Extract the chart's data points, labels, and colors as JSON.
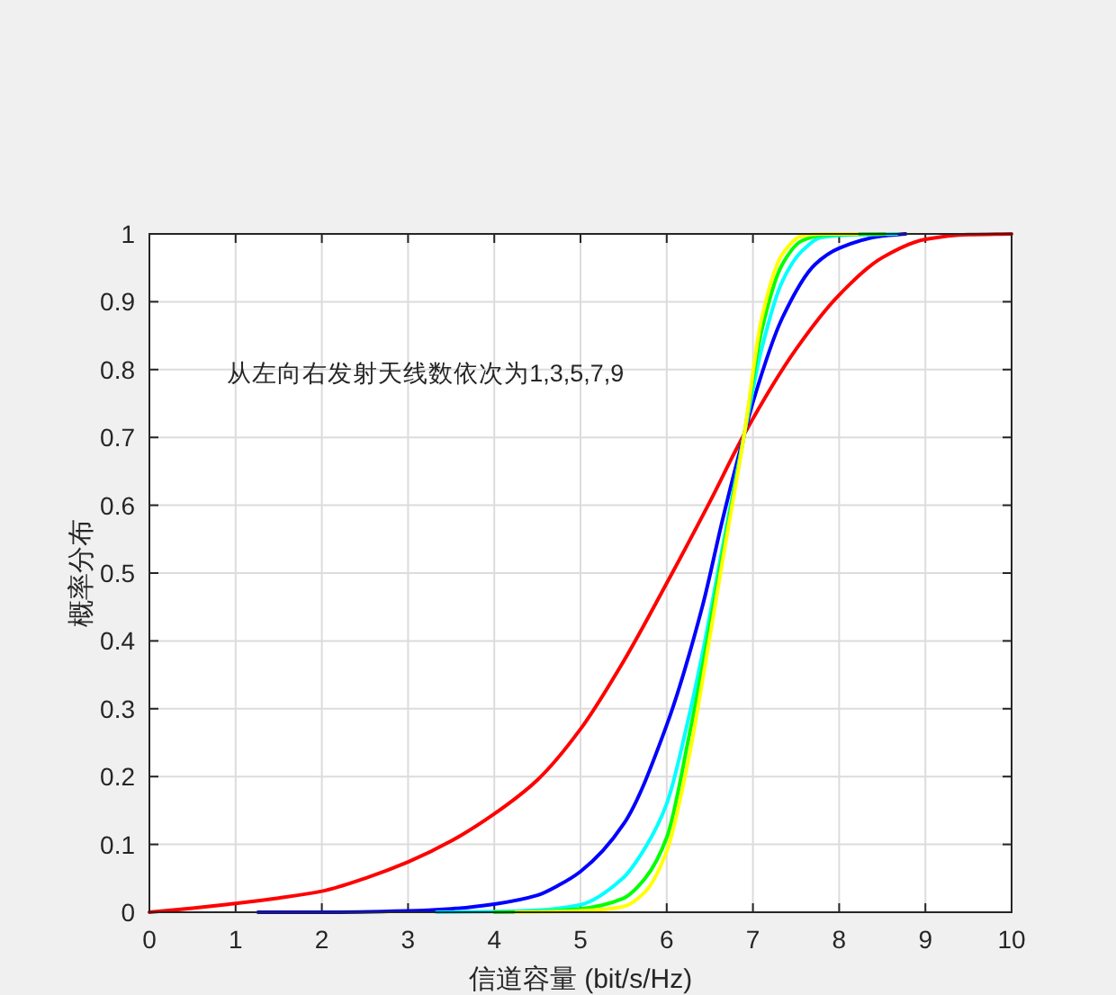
{
  "chart_data": {
    "type": "line",
    "xlabel": "信道容量 (bit/s/Hz)",
    "ylabel": "概率分布",
    "annotations": [
      "从左向右发射天线数依次为1,3,5,7,9"
    ],
    "xlim": [
      0,
      10
    ],
    "ylim": [
      0,
      1
    ],
    "xticks": [
      0,
      1,
      2,
      3,
      4,
      5,
      6,
      7,
      8,
      9,
      10
    ],
    "yticks": [
      0,
      0.1,
      0.2,
      0.3,
      0.4,
      0.5,
      0.6,
      0.7,
      0.8,
      0.9,
      1
    ],
    "grid": true,
    "series": [
      {
        "color": "#ff0000",
        "x": [
          0,
          0.5,
          1,
          1.5,
          2,
          2.5,
          3,
          3.5,
          4,
          4.5,
          5,
          5.5,
          6,
          6.5,
          6.9,
          7.5,
          8,
          8.5,
          9,
          9.5,
          10
        ],
        "values": [
          0,
          0.006,
          0.013,
          0.021,
          0.031,
          0.05,
          0.074,
          0.105,
          0.145,
          0.195,
          0.27,
          0.37,
          0.485,
          0.605,
          0.705,
          0.83,
          0.91,
          0.965,
          0.992,
          0.999,
          1
        ]
      },
      {
        "color": "#0000ff",
        "x": [
          1.26,
          2,
          3,
          3.5,
          4,
          4.5,
          4.75,
          5,
          5.5,
          6,
          6.42,
          6.65,
          6.9,
          7,
          7.34,
          7.72,
          8,
          8.5,
          8.77
        ],
        "values": [
          0,
          0,
          0.002,
          0.005,
          0.012,
          0.025,
          0.04,
          0.06,
          0.13,
          0.276,
          0.454,
          0.58,
          0.705,
          0.752,
          0.876,
          0.955,
          0.979,
          0.997,
          1
        ]
      },
      {
        "color": "#00ffff",
        "x": [
          3.33,
          4,
          4.5,
          5,
          5.49,
          5.75,
          6,
          6.26,
          6.42,
          6.65,
          6.9,
          7.1,
          7.34,
          7.57,
          7.8,
          8.2,
          8.67
        ],
        "values": [
          0,
          0.001,
          0.003,
          0.011,
          0.05,
          0.095,
          0.16,
          0.29,
          0.385,
          0.54,
          0.705,
          0.83,
          0.93,
          0.975,
          0.995,
          0.999,
          1
        ]
      },
      {
        "color": "#00ff00",
        "x": [
          4,
          4.5,
          5,
          5.49,
          5.75,
          6,
          6.26,
          6.42,
          6.65,
          6.9,
          7.1,
          7.34,
          7.57,
          7.8,
          8.53
        ],
        "values": [
          0,
          0.001,
          0.005,
          0.02,
          0.05,
          0.11,
          0.26,
          0.365,
          0.53,
          0.705,
          0.857,
          0.955,
          0.99,
          0.998,
          1
        ]
      },
      {
        "color": "#ffff00",
        "x": [
          4.25,
          4.75,
          5,
          5.49,
          5.75,
          6,
          6.26,
          6.42,
          6.65,
          6.9,
          7.1,
          7.34,
          7.57,
          7.8,
          8.21
        ],
        "values": [
          0,
          0.001,
          0.002,
          0.008,
          0.03,
          0.09,
          0.23,
          0.345,
          0.52,
          0.705,
          0.875,
          0.97,
          0.997,
          1,
          1
        ]
      }
    ]
  }
}
